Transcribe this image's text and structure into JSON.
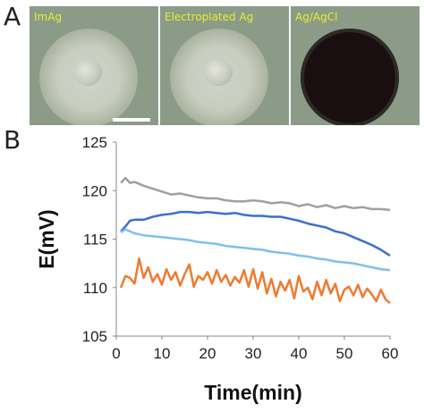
{
  "panels": {
    "a_letter": "A",
    "b_letter": "B",
    "images": [
      {
        "label": "ImAg",
        "appearance": "silver-disk",
        "scale_bar": true
      },
      {
        "label": "Electroplated Ag",
        "appearance": "silver-disk",
        "scale_bar": false
      },
      {
        "label": "Ag/AgCl",
        "appearance": "black-disk",
        "scale_bar": false
      }
    ],
    "label_color": "#e8ee2a"
  },
  "chart_data": {
    "type": "line",
    "title": "",
    "xlabel": "Time(min)",
    "ylabel": "E(mV)",
    "xlim": [
      0,
      60
    ],
    "ylim": [
      105,
      125
    ],
    "xticks": [
      0,
      10,
      20,
      30,
      40,
      50,
      60
    ],
    "yticks": [
      105,
      110,
      115,
      120,
      125
    ],
    "grid": false,
    "legend": "none",
    "series": [
      {
        "color": "#a0a0a0",
        "x": [
          1,
          2,
          3,
          4,
          6,
          8,
          10,
          12,
          14,
          16,
          18,
          20,
          22,
          24,
          26,
          28,
          30,
          32,
          34,
          36,
          38,
          40,
          42,
          44,
          46,
          48,
          50,
          52,
          54,
          56,
          58,
          60
        ],
        "y": [
          120.8,
          121.3,
          120.8,
          120.9,
          120.5,
          120.2,
          119.9,
          119.6,
          119.7,
          119.5,
          119.3,
          119.2,
          119.2,
          119.0,
          118.9,
          118.9,
          119.0,
          118.9,
          118.7,
          118.8,
          118.7,
          118.4,
          118.6,
          118.3,
          118.5,
          118.2,
          118.4,
          118.2,
          118.3,
          118.1,
          118.1,
          118.0
        ]
      },
      {
        "color": "#3a6fd0",
        "x": [
          1,
          2,
          3,
          4,
          6,
          8,
          10,
          12,
          14,
          16,
          18,
          20,
          22,
          24,
          26,
          28,
          30,
          32,
          34,
          36,
          38,
          40,
          42,
          44,
          46,
          48,
          50,
          52,
          54,
          56,
          58,
          60
        ],
        "y": [
          115.8,
          116.3,
          116.9,
          117.0,
          117.0,
          117.3,
          117.5,
          117.6,
          117.8,
          117.8,
          117.7,
          117.8,
          117.7,
          117.6,
          117.7,
          117.5,
          117.4,
          117.4,
          117.3,
          117.3,
          117.1,
          116.9,
          116.6,
          116.4,
          116.2,
          115.8,
          115.6,
          115.2,
          114.8,
          114.4,
          113.9,
          113.3
        ]
      },
      {
        "color": "#7cc0ec",
        "x": [
          1,
          2,
          4,
          6,
          8,
          10,
          12,
          14,
          16,
          18,
          20,
          22,
          24,
          26,
          28,
          30,
          32,
          34,
          36,
          38,
          40,
          42,
          44,
          46,
          48,
          50,
          52,
          54,
          56,
          58,
          60
        ],
        "y": [
          115.7,
          116.0,
          115.6,
          115.4,
          115.3,
          115.2,
          115.1,
          115.0,
          114.9,
          114.7,
          114.6,
          114.5,
          114.3,
          114.2,
          114.1,
          114.0,
          113.9,
          113.7,
          113.6,
          113.5,
          113.3,
          113.2,
          113.0,
          112.9,
          112.7,
          112.6,
          112.5,
          112.3,
          112.1,
          111.9,
          111.8
        ]
      },
      {
        "color": "#f07a30",
        "x": [
          1,
          2,
          3,
          4,
          5,
          6,
          7,
          8,
          9,
          10,
          11,
          12,
          13,
          14,
          15,
          16,
          17,
          18,
          19,
          20,
          21,
          22,
          23,
          24,
          25,
          26,
          27,
          28,
          29,
          30,
          31,
          32,
          33,
          34,
          35,
          36,
          37,
          38,
          39,
          40,
          41,
          42,
          43,
          44,
          45,
          46,
          47,
          48,
          49,
          50,
          51,
          52,
          53,
          54,
          55,
          56,
          57,
          58,
          59,
          60
        ],
        "y": [
          110.0,
          111.2,
          111.0,
          110.4,
          113.0,
          111.0,
          112.1,
          110.6,
          111.4,
          110.3,
          111.9,
          110.8,
          111.6,
          110.2,
          111.4,
          112.4,
          110.1,
          111.2,
          110.8,
          111.6,
          110.4,
          111.8,
          110.6,
          111.3,
          110.2,
          111.1,
          110.5,
          111.8,
          110.1,
          111.9,
          109.9,
          111.6,
          109.4,
          110.9,
          109.1,
          110.6,
          109.7,
          110.8,
          108.9,
          111.2,
          109.6,
          110.0,
          108.8,
          110.6,
          109.2,
          110.8,
          109.4,
          110.4,
          108.6,
          109.8,
          110.1,
          109.2,
          110.3,
          109.0,
          109.9,
          109.3,
          108.6,
          109.8,
          108.8,
          108.4
        ]
      }
    ]
  }
}
